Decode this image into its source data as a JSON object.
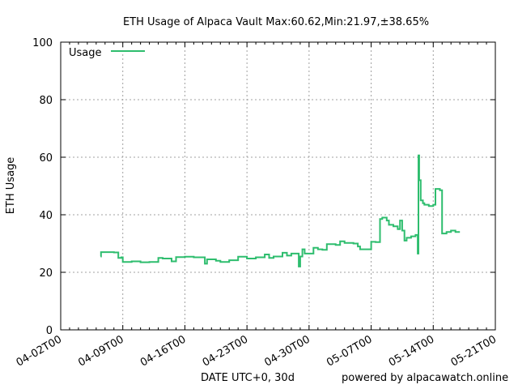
{
  "chart_data": {
    "type": "line",
    "title": "ETH Usage of Alpaca Vault Max:60.62,Min:21.97,±38.65%",
    "xlabel": "",
    "ylabel": "ETH Usage",
    "ylim": [
      0,
      100
    ],
    "yticks": [
      0,
      20,
      40,
      60,
      80,
      100
    ],
    "xlim": [
      "2022-04-02",
      "2022-05-21"
    ],
    "xtick_labels": [
      "04-02T00",
      "04-09T00",
      "04-16T00",
      "04-23T00",
      "04-30T00",
      "05-07T00",
      "05-14T00",
      "05-21T00"
    ],
    "grid": true,
    "legend_position": "top-left",
    "line_style": "step",
    "series_color": "#2ebd6e",
    "series": [
      {
        "name": "Usage",
        "points": [
          [
            "2022-04-06 12:00",
            25.5
          ],
          [
            "2022-04-06 13:00",
            27.0
          ],
          [
            "2022-04-07 12:00",
            27.0
          ],
          [
            "2022-04-08 00:00",
            26.9
          ],
          [
            "2022-04-08 12:00",
            25.0
          ],
          [
            "2022-04-08 20:00",
            25.2
          ],
          [
            "2022-04-09 00:00",
            23.6
          ],
          [
            "2022-04-10 00:00",
            23.8
          ],
          [
            "2022-04-11 00:00",
            23.5
          ],
          [
            "2022-04-12 00:00",
            23.6
          ],
          [
            "2022-04-13 00:00",
            25.0
          ],
          [
            "2022-04-13 12:00",
            24.8
          ],
          [
            "2022-04-14 12:00",
            23.8
          ],
          [
            "2022-04-15 00:00",
            25.3
          ],
          [
            "2022-04-16 00:00",
            25.4
          ],
          [
            "2022-04-17 00:00",
            25.2
          ],
          [
            "2022-04-18 00:00",
            25.2
          ],
          [
            "2022-04-18 06:00",
            23.0
          ],
          [
            "2022-04-18 12:00",
            24.5
          ],
          [
            "2022-04-19 00:00",
            24.5
          ],
          [
            "2022-04-19 12:00",
            24.0
          ],
          [
            "2022-04-20 00:00",
            23.6
          ],
          [
            "2022-04-21 00:00",
            24.2
          ],
          [
            "2022-04-22 00:00",
            25.4
          ],
          [
            "2022-04-23 00:00",
            24.8
          ],
          [
            "2022-04-24 00:00",
            25.2
          ],
          [
            "2022-04-25 00:00",
            26.2
          ],
          [
            "2022-04-25 12:00",
            25.0
          ],
          [
            "2022-04-26 00:00",
            25.5
          ],
          [
            "2022-04-27 00:00",
            26.8
          ],
          [
            "2022-04-27 12:00",
            25.8
          ],
          [
            "2022-04-28 00:00",
            26.5
          ],
          [
            "2022-04-28 20:00",
            22.0
          ],
          [
            "2022-04-29 00:00",
            25.5
          ],
          [
            "2022-04-29 06:00",
            28.0
          ],
          [
            "2022-04-29 12:00",
            26.5
          ],
          [
            "2022-04-30 00:00",
            26.5
          ],
          [
            "2022-04-30 12:00",
            28.5
          ],
          [
            "2022-05-01 00:00",
            28.0
          ],
          [
            "2022-05-01 12:00",
            27.8
          ],
          [
            "2022-05-02 00:00",
            29.8
          ],
          [
            "2022-05-03 00:00",
            29.5
          ],
          [
            "2022-05-03 12:00",
            30.8
          ],
          [
            "2022-05-04 00:00",
            30.2
          ],
          [
            "2022-05-05 00:00",
            30.0
          ],
          [
            "2022-05-05 12:00",
            29.0
          ],
          [
            "2022-05-05 18:00",
            28.0
          ],
          [
            "2022-05-06 12:00",
            28.0
          ],
          [
            "2022-05-07 00:00",
            30.6
          ],
          [
            "2022-05-07 12:00",
            30.5
          ],
          [
            "2022-05-08 00:00",
            38.5
          ],
          [
            "2022-05-08 06:00",
            39.0
          ],
          [
            "2022-05-08 18:00",
            38.0
          ],
          [
            "2022-05-09 00:00",
            36.5
          ],
          [
            "2022-05-09 12:00",
            36.0
          ],
          [
            "2022-05-10 00:00",
            35.0
          ],
          [
            "2022-05-10 06:00",
            38.0
          ],
          [
            "2022-05-10 12:00",
            34.5
          ],
          [
            "2022-05-10 18:00",
            31.0
          ],
          [
            "2022-05-11 00:00",
            32.0
          ],
          [
            "2022-05-11 12:00",
            32.5
          ],
          [
            "2022-05-12 00:00",
            33.0
          ],
          [
            "2022-05-12 06:00",
            26.5
          ],
          [
            "2022-05-12 08:00",
            60.62
          ],
          [
            "2022-05-12 10:00",
            52.0
          ],
          [
            "2022-05-12 14:00",
            45.0
          ],
          [
            "2022-05-12 20:00",
            44.0
          ],
          [
            "2022-05-13 00:00",
            43.5
          ],
          [
            "2022-05-13 12:00",
            43.0
          ],
          [
            "2022-05-14 00:00",
            43.5
          ],
          [
            "2022-05-14 06:00",
            49.0
          ],
          [
            "2022-05-14 18:00",
            48.5
          ],
          [
            "2022-05-15 00:00",
            33.5
          ],
          [
            "2022-05-15 12:00",
            34.0
          ],
          [
            "2022-05-16 00:00",
            34.5
          ],
          [
            "2022-05-16 12:00",
            34.0
          ],
          [
            "2022-05-17 00:00",
            34.0
          ]
        ]
      }
    ]
  },
  "footer": {
    "axis_caption": "DATE UTC+0, 30d",
    "credit": "powered by alpacawatch.online"
  }
}
